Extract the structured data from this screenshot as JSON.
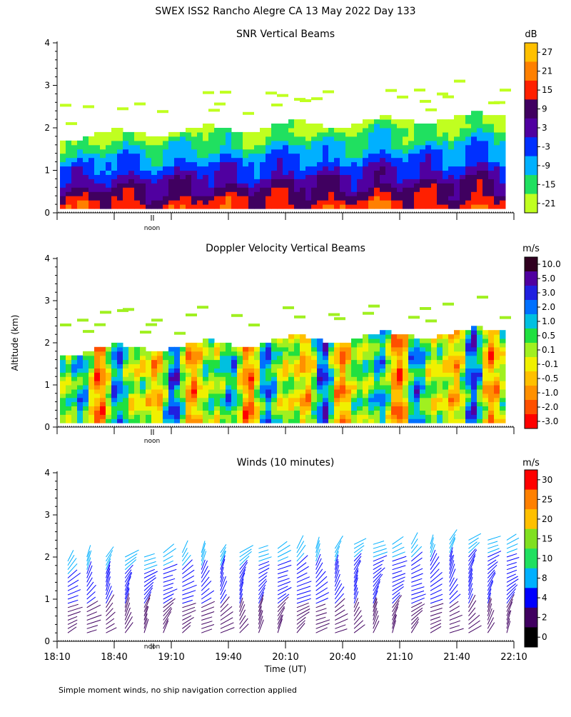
{
  "page_title": "SWEX ISS2 Rancho Alegre CA  13 May 2022 Day 133",
  "y_axis_label": "Altitude (km)",
  "x_axis_label": "Time (UT)",
  "footnote": "Simple moment winds, no ship navigation correction applied",
  "noon_label": "noon",
  "chart_data": [
    {
      "type": "heatmap",
      "title": "SNR Vertical Beams",
      "unit": "dB",
      "ylim": [
        0,
        4
      ],
      "yticks": [
        "0",
        "1",
        "2",
        "3",
        "4"
      ],
      "xticks": [
        "18:10",
        "18:40",
        "19:10",
        "19:40",
        "20:10",
        "20:40",
        "21:10",
        "21:40",
        "22:10"
      ],
      "xlim": [
        "18:10",
        "22:10"
      ],
      "colorbar": {
        "labels": [
          "27",
          "21",
          "15",
          "9",
          "3",
          "-3",
          "-9",
          "-15",
          "-21"
        ],
        "colors": [
          "#ffc000",
          "#ff8000",
          "#ff2000",
          "#400060",
          "#5000a0",
          "#0030ff",
          "#00b0ff",
          "#20e060",
          "#c0ff20"
        ]
      },
      "description_top_km": [
        1.8,
        2.3
      ],
      "grid": false
    },
    {
      "type": "heatmap",
      "title": "Doppler Velocity Vertical Beams",
      "unit": "m/s",
      "ylim": [
        0,
        4
      ],
      "yticks": [
        "0",
        "1",
        "2",
        "3",
        "4"
      ],
      "xticks": [
        "18:10",
        "18:40",
        "19:10",
        "19:40",
        "20:10",
        "20:40",
        "21:10",
        "21:40",
        "22:10"
      ],
      "xlim": [
        "18:10",
        "22:10"
      ],
      "colorbar": {
        "labels": [
          "10.0",
          "5.0",
          "3.0",
          "2.0",
          "1.0",
          "0.5",
          "0.1",
          "-0.1",
          "-0.5",
          "-1.0",
          "-2.0",
          "-3.0"
        ],
        "colors": [
          "#300020",
          "#5000a0",
          "#2020e0",
          "#0070ff",
          "#00c0e0",
          "#20e040",
          "#a0f020",
          "#f0f000",
          "#ffc000",
          "#ff9000",
          "#ff5000",
          "#ff0000"
        ]
      },
      "grid": false
    },
    {
      "type": "scatter",
      "title": "Winds (10 minutes)",
      "unit": "m/s",
      "ylim": [
        0,
        4
      ],
      "yticks": [
        "0",
        "1",
        "2",
        "3",
        "4"
      ],
      "xticks": [
        "18:10",
        "18:40",
        "19:10",
        "19:40",
        "20:10",
        "20:40",
        "21:10",
        "21:40",
        "22:10"
      ],
      "xlim": [
        "18:10",
        "22:10"
      ],
      "colorbar": {
        "labels": [
          "30",
          "25",
          "20",
          "15",
          "10",
          "8",
          "4",
          "2",
          "0"
        ],
        "colors": [
          "#ff0000",
          "#ff8000",
          "#ffc000",
          "#80e020",
          "#20e060",
          "#00b0ff",
          "#0000ff",
          "#400060",
          "#000000"
        ]
      },
      "profiles_count": 24,
      "grid": false
    }
  ]
}
